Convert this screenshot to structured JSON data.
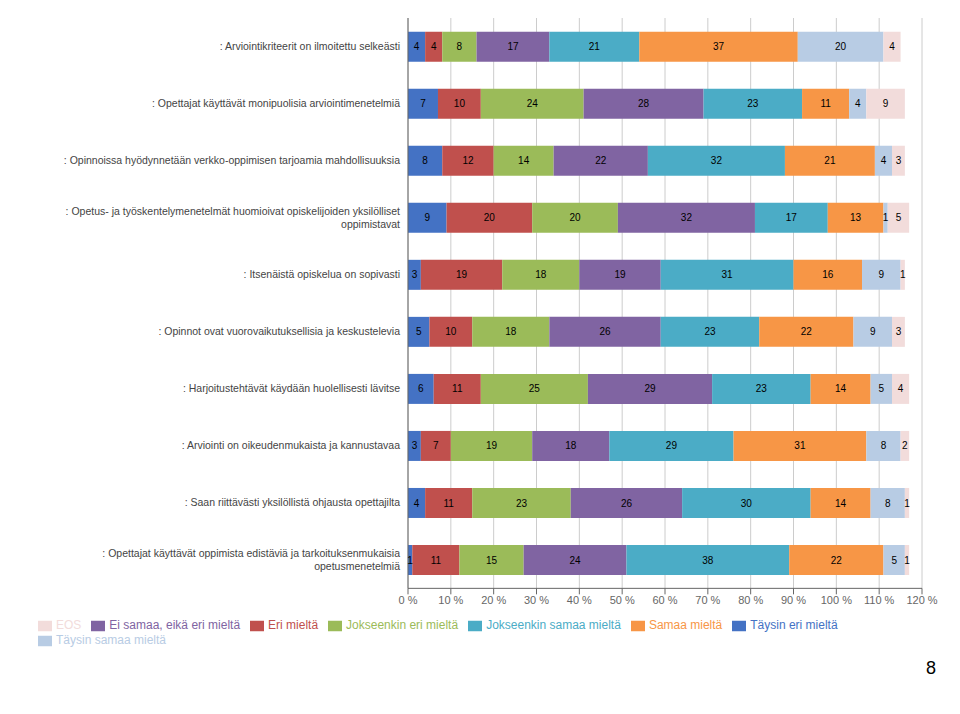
{
  "chart_data": {
    "type": "bar",
    "orientation": "horizontal",
    "stacked": true,
    "data_labels": true,
    "grid": true,
    "legend": "bottom",
    "categories": [
      ": Arviointikriteerit on ilmoitettu selkeästi",
      ": Opettajat käyttävät monipuolisia arviointimenetelmiä",
      ": Opinnoissa hyödynnetään verkko-oppimisen tarjoamia mahdollisuuksia",
      ": Opetus- ja työskentelymenetelmät huomioivat opiskelijoiden yksilölliset\noppimistavat",
      ": Itsenäistä opiskelua on sopivasti",
      ": Opinnot ovat vuorovaikutuksellisia ja keskustelevia",
      ": Harjoitustehtävät käydään huolellisesti lävitse",
      ": Arviointi on oikeudenmukaista ja kannustavaa",
      ": Saan riittävästi yksilöllistä ohjausta opettajilta",
      ": Opettajat käyttävät oppimista edistäviä ja tarkoituksenmukaisia\nopetusmenetelmiä"
    ],
    "series": [
      {
        "name": "Täysin eri mieltä",
        "color": "#4472C4",
        "values": [
          4,
          7,
          8,
          9,
          3,
          5,
          6,
          3,
          4,
          1
        ]
      },
      {
        "name": "Eri mieltä",
        "color": "#C0504D",
        "values": [
          4,
          10,
          12,
          20,
          19,
          10,
          11,
          7,
          11,
          11
        ]
      },
      {
        "name": "Jokseenkin eri mieltä",
        "color": "#9BBB59",
        "values": [
          8,
          24,
          14,
          20,
          18,
          18,
          25,
          19,
          23,
          15
        ]
      },
      {
        "name": "Ei samaa, eikä eri mieltä",
        "color": "#8064A2",
        "values": [
          17,
          28,
          22,
          32,
          19,
          26,
          29,
          18,
          26,
          24
        ]
      },
      {
        "name": "Jokseenkin samaa mieltä",
        "color": "#4BACC6",
        "values": [
          21,
          23,
          32,
          17,
          31,
          23,
          23,
          29,
          30,
          38
        ]
      },
      {
        "name": "Samaa mieltä",
        "color": "#F79646",
        "values": [
          37,
          11,
          21,
          13,
          16,
          22,
          14,
          31,
          14,
          22
        ]
      },
      {
        "name": "Täysin samaa mieltä",
        "color": "#B8CCE4",
        "values": [
          20,
          4,
          4,
          1,
          9,
          9,
          5,
          8,
          8,
          5
        ]
      },
      {
        "name": "EOS",
        "color": "#F2DCDB",
        "values": [
          4,
          9,
          3,
          5,
          1,
          3,
          4,
          2,
          1,
          1
        ]
      }
    ],
    "xlim": [
      0,
      120
    ],
    "xticks": [
      {
        "value": 0,
        "label": "0 %"
      },
      {
        "value": 10,
        "label": "10 %"
      },
      {
        "value": 20,
        "label": "20 %"
      },
      {
        "value": 30,
        "label": "30 %"
      },
      {
        "value": 40,
        "label": "40 %"
      },
      {
        "value": 50,
        "label": "50 %"
      },
      {
        "value": 60,
        "label": "60 %"
      },
      {
        "value": 70,
        "label": "70 %"
      },
      {
        "value": 80,
        "label": "80 %"
      },
      {
        "value": 90,
        "label": "90 %"
      },
      {
        "value": 100,
        "label": "100 %"
      },
      {
        "value": 110,
        "label": "110 %"
      },
      {
        "value": 120,
        "label": "120 %"
      }
    ],
    "annotations": [
      "8"
    ]
  }
}
